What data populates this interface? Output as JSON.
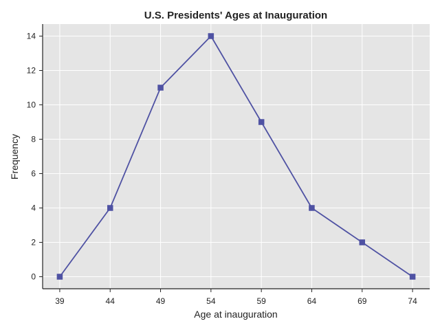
{
  "chart_data": {
    "type": "line",
    "title": "U.S. Presidents' Ages at Inauguration",
    "xlabel": "Age at inauguration",
    "ylabel": "Frequency",
    "x": [
      39,
      44,
      49,
      54,
      59,
      64,
      69,
      74
    ],
    "series": [
      {
        "values": [
          0,
          4,
          11,
          14,
          9,
          4,
          2,
          0
        ]
      }
    ],
    "xticks": [
      "39",
      "44",
      "49",
      "54",
      "59",
      "64",
      "69",
      "74"
    ],
    "yticks": [
      "0",
      "2",
      "4",
      "6",
      "8",
      "10",
      "12",
      "14"
    ],
    "xlim": [
      37.3,
      75.7
    ],
    "ylim": [
      -0.7,
      14.7
    ],
    "grid": true,
    "marker": "square",
    "colors": {
      "line": "#4f52a3",
      "plot_background": "#e5e5e5",
      "grid": "#ffffff",
      "axis": "#222222"
    }
  }
}
